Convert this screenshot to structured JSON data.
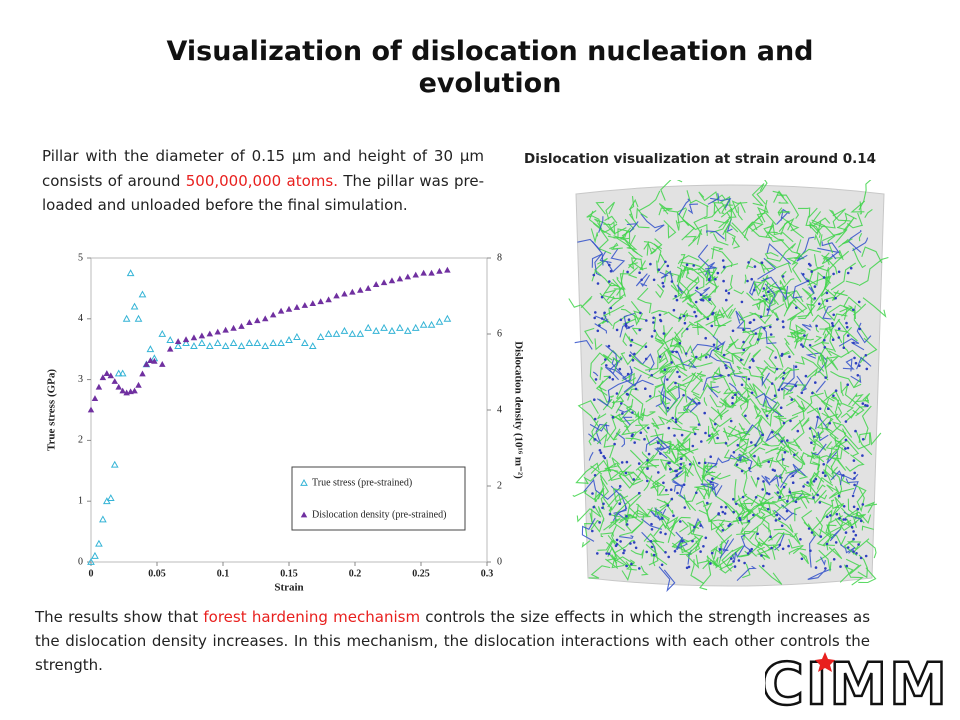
{
  "title": "Visualization of dislocation nucleation and evolution",
  "intro": [
    "Pillar with the diameter of 0.15 µm and height of 30 µm consists of around ",
    "500,000,000 atoms.",
    " The pillar was pre-loaded and unloaded before the final simulation."
  ],
  "image_caption": "Dislocation visualization at strain around 0.14",
  "conclusion": [
    "The results show that ",
    "forest hardening mechanism",
    " controls the size effects in which the strength increases as the dislocation density increases. In this mechanism, the dislocation interactions with each other controls the strength."
  ],
  "logo": "CIMM",
  "chart_data": {
    "type": "scatter",
    "xlabel": "Strain",
    "ylabel": "True stress (GPa)",
    "y2label": "Dislocation density (10¹⁶ m⁻²)",
    "x": [
      0,
      0.003,
      0.006,
      0.009,
      0.012,
      0.015,
      0.018,
      0.021,
      0.024,
      0.027,
      0.03,
      0.033,
      0.036,
      0.039,
      0.042,
      0.045,
      0.048,
      0.054,
      0.06,
      0.066,
      0.072,
      0.078,
      0.084,
      0.09,
      0.096,
      0.102,
      0.108,
      0.114,
      0.12,
      0.126,
      0.132,
      0.138,
      0.144,
      0.15,
      0.156,
      0.162,
      0.168,
      0.174,
      0.18,
      0.186,
      0.192,
      0.198,
      0.204,
      0.21,
      0.216,
      0.222,
      0.228,
      0.234,
      0.24,
      0.246,
      0.252,
      0.258,
      0.264,
      0.27
    ],
    "series": [
      {
        "name": "True stress (pre-strained)",
        "color": "#35b4d6",
        "filled": false,
        "values": [
          0,
          0.1,
          0.3,
          0.7,
          1.0,
          1.05,
          1.6,
          3.1,
          3.1,
          4.0,
          4.75,
          4.2,
          4.0,
          4.4,
          3.25,
          3.5,
          3.35,
          3.75,
          3.65,
          3.55,
          3.6,
          3.55,
          3.6,
          3.55,
          3.6,
          3.55,
          3.6,
          3.55,
          3.6,
          3.6,
          3.55,
          3.6,
          3.6,
          3.65,
          3.7,
          3.6,
          3.55,
          3.7,
          3.75,
          3.75,
          3.8,
          3.75,
          3.75,
          3.85,
          3.8,
          3.85,
          3.8,
          3.85,
          3.8,
          3.85,
          3.9,
          3.9,
          3.95,
          4.0
        ]
      },
      {
        "name": "Dislocation density (pre-strained)",
        "color": "#7030a0",
        "filled": true,
        "axis": "y2",
        "values": [
          4.0,
          4.3,
          4.6,
          4.85,
          4.96,
          4.9,
          4.75,
          4.6,
          4.5,
          4.45,
          4.48,
          4.5,
          4.65,
          4.95,
          5.2,
          5.3,
          5.28,
          5.2,
          5.6,
          5.8,
          5.85,
          5.9,
          5.95,
          6.0,
          6.05,
          6.1,
          6.15,
          6.2,
          6.3,
          6.35,
          6.4,
          6.5,
          6.6,
          6.65,
          6.7,
          6.75,
          6.8,
          6.85,
          6.9,
          7.0,
          7.05,
          7.1,
          7.15,
          7.2,
          7.3,
          7.35,
          7.4,
          7.45,
          7.5,
          7.55,
          7.6,
          7.6,
          7.65,
          7.68
        ]
      }
    ],
    "xlim": [
      0,
      0.3
    ],
    "xticks": [
      0,
      0.05,
      0.1,
      0.15,
      0.2,
      0.25,
      0.3
    ],
    "ylim": [
      0,
      5
    ],
    "yticks": [
      0,
      1,
      2,
      3,
      4,
      5
    ],
    "y2lim": [
      0,
      8
    ],
    "y2ticks": [
      0,
      2,
      4,
      6,
      8
    ],
    "grid": false
  }
}
